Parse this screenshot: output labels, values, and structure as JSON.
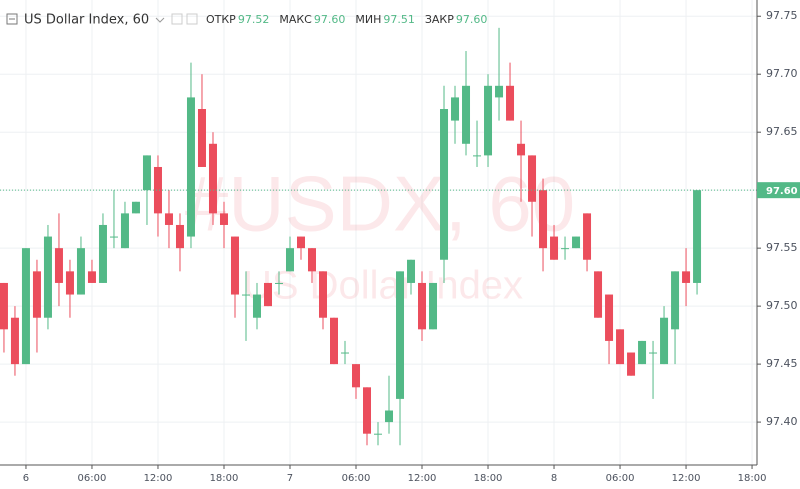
{
  "chart_data": {
    "type": "candlestick",
    "title": "US Dollar Index, 60",
    "legend": [
      {
        "label": "ОТКР",
        "value": "97.52"
      },
      {
        "label": "МАКС",
        "value": "97.60"
      },
      {
        "label": "МИН",
        "value": "97.51"
      },
      {
        "label": "ЗАКР",
        "value": "97.60"
      }
    ],
    "watermark": "#USDX, 60",
    "watermark_subtitle": "US Dollar Index",
    "last_price_label": "97.60",
    "up_color": "#53b987",
    "down_color": "#eb4d5c",
    "x": [
      -2,
      -1,
      0,
      1,
      2,
      3,
      4,
      5,
      6,
      7,
      8,
      9,
      10,
      11,
      12,
      13,
      14,
      15,
      16,
      17,
      18,
      19,
      20,
      21,
      22,
      23,
      24,
      25,
      26,
      27,
      28,
      29,
      30,
      31,
      32,
      33,
      34,
      35,
      36,
      37,
      38,
      39,
      40,
      41,
      42,
      43,
      44,
      45,
      46,
      47,
      48,
      49,
      50,
      51,
      52,
      53,
      54,
      55,
      56,
      57,
      58,
      59,
      60,
      61
    ],
    "open": [
      97.52,
      97.49,
      97.45,
      97.53,
      97.49,
      97.55,
      97.53,
      97.51,
      97.53,
      97.52,
      97.56,
      97.55,
      97.58,
      97.6,
      97.62,
      97.58,
      97.57,
      97.56,
      97.67,
      97.64,
      97.58,
      97.56,
      97.51,
      97.49,
      97.52,
      97.52,
      97.53,
      97.56,
      97.55,
      97.53,
      97.49,
      97.46,
      97.45,
      97.43,
      97.39,
      97.4,
      97.42,
      97.52,
      97.52,
      97.48,
      97.54,
      97.66,
      97.64,
      97.63,
      97.63,
      97.68,
      97.69,
      97.64,
      97.63,
      97.6,
      97.56,
      97.55,
      97.55,
      97.58,
      97.53,
      97.51,
      97.48,
      97.46,
      97.45,
      97.46,
      97.45,
      97.48,
      97.53,
      97.52
    ],
    "high": [
      97.52,
      97.5,
      97.55,
      97.54,
      97.57,
      97.58,
      97.54,
      97.56,
      97.54,
      97.58,
      97.6,
      97.59,
      97.59,
      97.63,
      97.63,
      97.6,
      97.58,
      97.71,
      97.7,
      97.65,
      97.59,
      97.56,
      97.53,
      97.52,
      97.52,
      97.53,
      97.56,
      97.56,
      97.55,
      97.53,
      97.49,
      97.47,
      97.45,
      97.43,
      97.4,
      97.44,
      97.53,
      97.54,
      97.53,
      97.52,
      97.69,
      97.69,
      97.72,
      97.66,
      97.7,
      97.74,
      97.71,
      97.66,
      97.63,
      97.61,
      97.57,
      97.56,
      97.56,
      97.58,
      97.53,
      97.51,
      97.48,
      97.46,
      97.47,
      97.47,
      97.5,
      97.53,
      97.55,
      97.6
    ],
    "low": [
      97.46,
      97.44,
      97.45,
      97.46,
      97.48,
      97.5,
      97.49,
      97.51,
      97.52,
      97.52,
      97.55,
      97.55,
      97.58,
      97.57,
      97.56,
      97.55,
      97.53,
      97.55,
      97.62,
      97.57,
      97.55,
      97.49,
      97.47,
      97.48,
      97.5,
      97.51,
      97.53,
      97.54,
      97.52,
      97.48,
      97.45,
      97.45,
      97.42,
      97.38,
      97.38,
      97.39,
      97.38,
      97.51,
      97.47,
      97.48,
      97.52,
      97.64,
      97.63,
      97.62,
      97.62,
      97.66,
      97.66,
      97.59,
      97.56,
      97.53,
      97.54,
      97.54,
      97.55,
      97.53,
      97.49,
      97.45,
      97.45,
      97.44,
      97.45,
      97.42,
      97.45,
      97.45,
      97.5,
      97.51
    ],
    "close": [
      97.48,
      97.45,
      97.55,
      97.49,
      97.56,
      97.52,
      97.51,
      97.55,
      97.52,
      97.57,
      97.56,
      97.58,
      97.59,
      97.63,
      97.58,
      97.57,
      97.55,
      97.68,
      97.62,
      97.58,
      97.57,
      97.51,
      97.51,
      97.51,
      97.5,
      97.52,
      97.55,
      97.55,
      97.53,
      97.49,
      97.45,
      97.46,
      97.43,
      97.39,
      97.39,
      97.41,
      97.53,
      97.54,
      97.48,
      97.52,
      97.67,
      97.68,
      97.69,
      97.63,
      97.69,
      97.69,
      97.66,
      97.63,
      97.59,
      97.55,
      97.54,
      97.55,
      97.56,
      97.54,
      97.49,
      97.47,
      97.45,
      97.44,
      97.47,
      97.46,
      97.49,
      97.53,
      97.52,
      97.6
    ],
    "xlim": [
      -2.36,
      66.45
    ],
    "xticks": [
      {
        "value": 0,
        "label": "6"
      },
      {
        "value": 6,
        "label": "06:00"
      },
      {
        "value": 12,
        "label": "12:00"
      },
      {
        "value": 18,
        "label": "18:00"
      },
      {
        "value": 24,
        "label": "7"
      },
      {
        "value": 30,
        "label": "06:00"
      },
      {
        "value": 36,
        "label": "12:00"
      },
      {
        "value": 42,
        "label": "18:00"
      },
      {
        "value": 48,
        "label": "8"
      },
      {
        "value": 54,
        "label": "06:00"
      },
      {
        "value": 60,
        "label": "12:00"
      },
      {
        "value": 66,
        "label": "18:00"
      }
    ],
    "ylim": [
      97.363,
      97.764
    ],
    "yticks": [
      {
        "value": 97.4,
        "label": "97.40"
      },
      {
        "value": 97.45,
        "label": "97.45"
      },
      {
        "value": 97.5,
        "label": "97.50"
      },
      {
        "value": 97.55,
        "label": "97.55"
      },
      {
        "value": 97.6,
        "label": "97.60"
      },
      {
        "value": 97.65,
        "label": "97.65"
      },
      {
        "value": 97.7,
        "label": "97.70"
      },
      {
        "value": 97.75,
        "label": "97.75"
      }
    ],
    "grid": true
  }
}
